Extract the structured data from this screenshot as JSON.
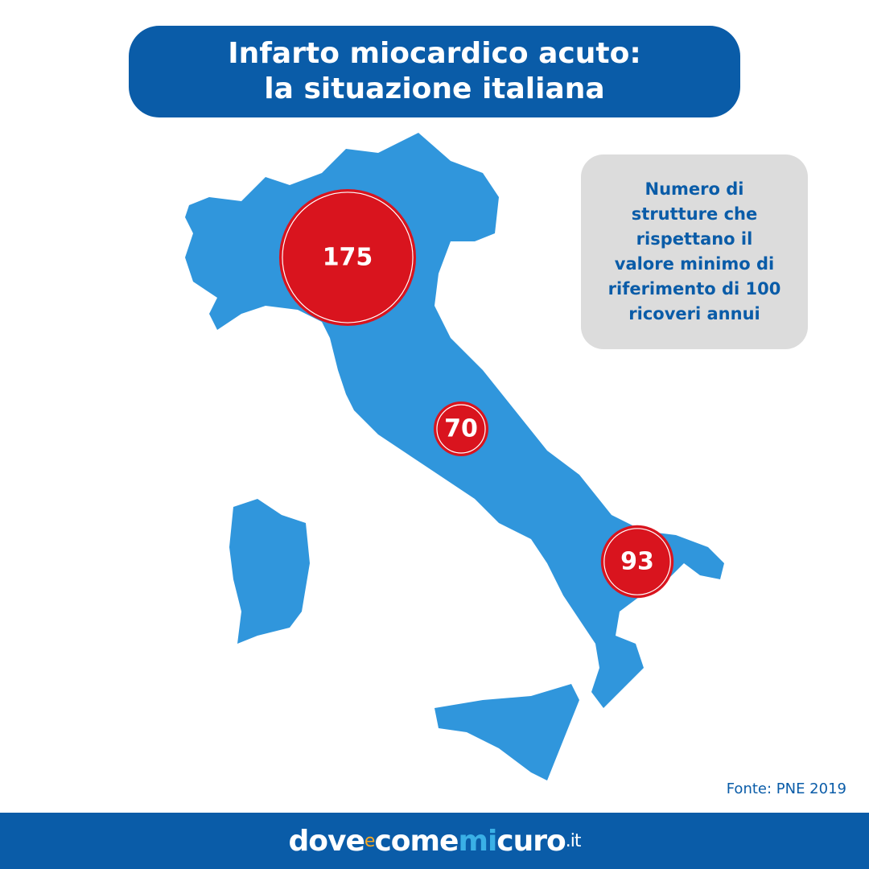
{
  "title": [
    "Infarto miocardico acuto:",
    "la situazione italiana"
  ],
  "note": [
    "Numero di",
    "strutture che",
    "rispettano il",
    "valore minimo di",
    "riferimento di 100",
    "ricoveri annui"
  ],
  "bubbles": [
    {
      "value": 175,
      "color": "#d9141e"
    },
    {
      "value": 70,
      "color": "#d9141e"
    },
    {
      "value": 93,
      "color": "#d9141e"
    }
  ],
  "source": "Fonte: PNE 2019",
  "logo": [
    {
      "text": "dove",
      "color": "#ffffff"
    },
    {
      "text": "e",
      "color": "#f7a823"
    },
    {
      "text": "come",
      "color": "#ffffff"
    },
    {
      "text": "mi",
      "color": "#3ab0e6"
    },
    {
      "text": "curo",
      "color": "#ffffff"
    },
    {
      "text": ".it",
      "color": "#ffffff"
    }
  ]
}
